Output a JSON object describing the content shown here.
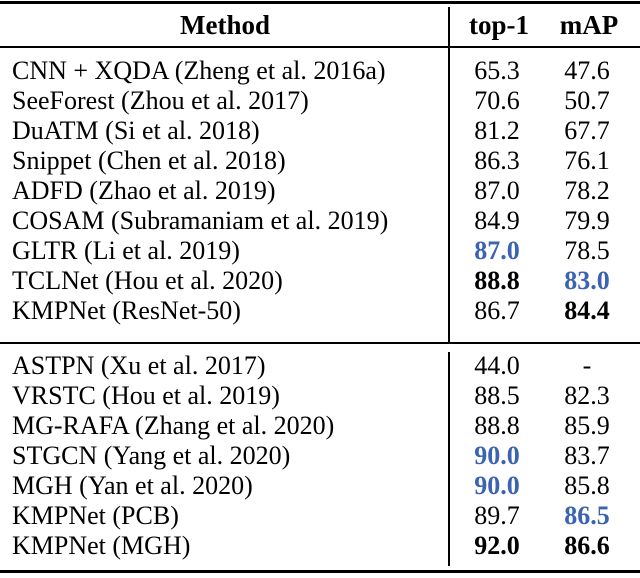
{
  "colors": {
    "background": "#ffffff",
    "text": "#000000",
    "rule": "#000000",
    "highlight_blue": "#3C63B1"
  },
  "table": {
    "header": {
      "method": "Method",
      "top1": "top-1",
      "map": "mAP"
    },
    "sections": [
      {
        "rows": [
          {
            "method": "CNN + XQDA (Zheng et al. 2016a)",
            "top1": {
              "value": "65.3",
              "style": "plain"
            },
            "map": {
              "value": "47.6",
              "style": "plain"
            }
          },
          {
            "method": "SeeForest (Zhou et al. 2017)",
            "top1": {
              "value": "70.6",
              "style": "plain"
            },
            "map": {
              "value": "50.7",
              "style": "plain"
            }
          },
          {
            "method": "DuATM (Si et al. 2018)",
            "top1": {
              "value": "81.2",
              "style": "plain"
            },
            "map": {
              "value": "67.7",
              "style": "plain"
            }
          },
          {
            "method": "Snippet (Chen et al. 2018)",
            "top1": {
              "value": "86.3",
              "style": "plain"
            },
            "map": {
              "value": "76.1",
              "style": "plain"
            }
          },
          {
            "method": "ADFD (Zhao et al. 2019)",
            "top1": {
              "value": "87.0",
              "style": "plain"
            },
            "map": {
              "value": "78.2",
              "style": "plain"
            }
          },
          {
            "method": "COSAM (Subramaniam et al. 2019)",
            "top1": {
              "value": "84.9",
              "style": "plain"
            },
            "map": {
              "value": "79.9",
              "style": "plain"
            }
          },
          {
            "method": "GLTR (Li et al. 2019)",
            "top1": {
              "value": "87.0",
              "style": "bold-blue"
            },
            "map": {
              "value": "78.5",
              "style": "plain"
            }
          },
          {
            "method": "TCLNet (Hou et al. 2020)",
            "top1": {
              "value": "88.8",
              "style": "bold"
            },
            "map": {
              "value": "83.0",
              "style": "bold-blue"
            }
          },
          {
            "method": "KMPNet (ResNet-50)",
            "top1": {
              "value": "86.7",
              "style": "plain"
            },
            "map": {
              "value": "84.4",
              "style": "bold"
            }
          }
        ]
      },
      {
        "rows": [
          {
            "method": "ASTPN (Xu et al. 2017)",
            "top1": {
              "value": "44.0",
              "style": "plain"
            },
            "map": {
              "value": "-",
              "style": "plain"
            }
          },
          {
            "method": "VRSTC (Hou et al. 2019)",
            "top1": {
              "value": "88.5",
              "style": "plain"
            },
            "map": {
              "value": "82.3",
              "style": "plain"
            }
          },
          {
            "method": "MG-RAFA (Zhang et al. 2020)",
            "top1": {
              "value": "88.8",
              "style": "plain"
            },
            "map": {
              "value": "85.9",
              "style": "plain"
            }
          },
          {
            "method": "STGCN (Yang et al. 2020)",
            "top1": {
              "value": "90.0",
              "style": "bold-blue"
            },
            "map": {
              "value": "83.7",
              "style": "plain"
            }
          },
          {
            "method": "MGH (Yan et al. 2020)",
            "top1": {
              "value": "90.0",
              "style": "bold-blue"
            },
            "map": {
              "value": "85.8",
              "style": "plain"
            }
          },
          {
            "method": "KMPNet (PCB)",
            "top1": {
              "value": "89.7",
              "style": "plain"
            },
            "map": {
              "value": "86.5",
              "style": "bold-blue"
            }
          },
          {
            "method": "KMPNet (MGH)",
            "top1": {
              "value": "92.0",
              "style": "bold"
            },
            "map": {
              "value": "86.6",
              "style": "bold"
            }
          }
        ]
      }
    ]
  }
}
